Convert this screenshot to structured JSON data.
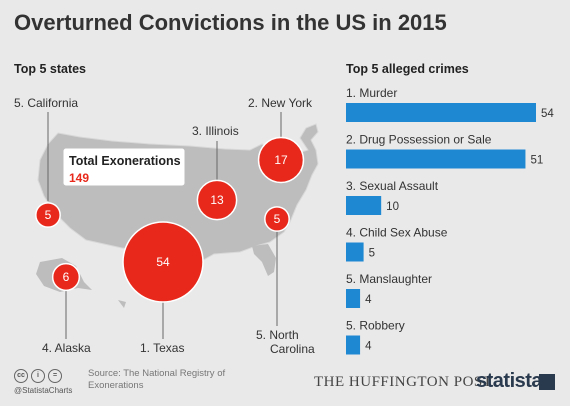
{
  "title": "Overturned Convictions in the US in 2015",
  "left_section_title": "Top 5 states",
  "right_section_title": "Top 5 alleged crimes",
  "total_box": {
    "label": "Total Exonerations",
    "value": "149"
  },
  "colors": {
    "accent_red": "#e8281b",
    "bar_blue": "#1e88d2",
    "map_fill": "#bdbdbd",
    "background": "#e9e9e9"
  },
  "footer": {
    "handle": "@StatistaCharts",
    "source": "Source: The National Registry of Exonerations",
    "partner": "The Huffington Post",
    "partner_display": "THE HUFFINGTON POST",
    "brand": "statista",
    "icons": [
      "cc-icon",
      "by-icon",
      "nd-icon"
    ]
  },
  "chart_data": [
    {
      "type": "bubble-map",
      "title": "Top 5 states",
      "points": [
        {
          "label": "5. California",
          "state": "California",
          "value": 5
        },
        {
          "label": "2. New York",
          "state": "New York",
          "value": 17
        },
        {
          "label": "3. Illinois",
          "state": "Illinois",
          "value": 13
        },
        {
          "label": "5.  North Carolina",
          "state": "North Carolina",
          "value": 5
        },
        {
          "label": "1. Texas",
          "state": "Texas",
          "value": 54
        },
        {
          "label": "4. Alaska",
          "state": "Alaska",
          "value": 6
        }
      ]
    },
    {
      "type": "bar",
      "orientation": "horizontal",
      "title": "Top 5 alleged crimes",
      "categories": [
        "1. Murder",
        "2. Drug Possession or Sale",
        "3. Sexual Assault",
        "4. Child Sex Abuse",
        "5. Manslaughter",
        "5. Robbery"
      ],
      "values": [
        54,
        51,
        10,
        5,
        4,
        4
      ],
      "xlim": [
        0,
        54
      ]
    }
  ]
}
